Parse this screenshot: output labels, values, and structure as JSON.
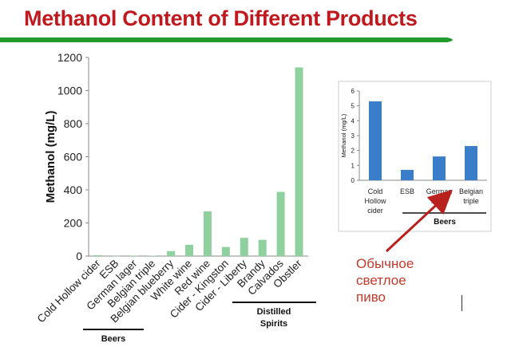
{
  "slide": {
    "title": "Methanol Content of Different Products",
    "title_color": "#c0181d",
    "underline_color": "#1f9a2e"
  },
  "annotation": {
    "lines": [
      "Обычное",
      "светлое",
      "пиво"
    ],
    "color": "#c0392b",
    "arrow_color": "#b8211d"
  },
  "chart_data": [
    {
      "type": "bar",
      "categories": [
        "Cold Hollow cider",
        "ESB",
        "German lager",
        "Belgian triple",
        "Belgian blueberry",
        "White wine",
        "Red wine",
        "Cider - Kingston",
        "Cider - Liberty",
        "Brandy",
        "Calvados",
        "Obstler"
      ],
      "values": [
        5.3,
        0.7,
        1.6,
        2.3,
        30,
        68,
        270,
        55,
        110,
        98,
        388,
        1140
      ],
      "title": "",
      "xlabel": "",
      "ylabel": "Methanol (mg/L)",
      "ylim": [
        0,
        1200
      ],
      "yticks": [
        0,
        200,
        400,
        600,
        800,
        1000,
        1200
      ],
      "grid": false,
      "legend": "none",
      "bar_color": "#8fd19e",
      "groups": [
        {
          "label": "Beers",
          "start": 0,
          "end": 3
        },
        {
          "label": "Distilled Spirits",
          "start": 9,
          "end": 11
        }
      ]
    },
    {
      "type": "bar",
      "categories": [
        "Cold Hollow cider",
        "ESB",
        "German lager",
        "Belgian triple"
      ],
      "values": [
        5.3,
        0.7,
        1.6,
        2.3
      ],
      "title": "",
      "xlabel": "",
      "ylabel": "Methanol (mg/L)",
      "ylim": [
        0,
        6
      ],
      "yticks": [
        0,
        1,
        2,
        3,
        4,
        5,
        6
      ],
      "grid": false,
      "legend": "none",
      "bar_color": "#3b7dc9",
      "groups": [
        {
          "label": "Beers",
          "start": 1,
          "end": 3
        }
      ]
    }
  ]
}
